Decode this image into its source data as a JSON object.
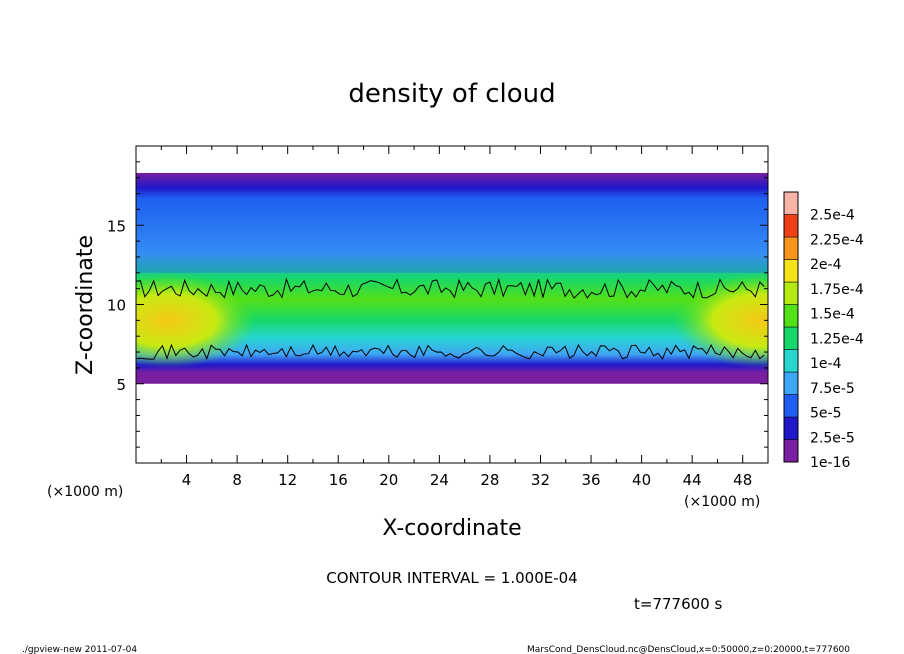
{
  "chart_data": {
    "type": "heatmap",
    "title": "density of cloud",
    "xlabel": "X-coordinate",
    "ylabel": "Z-coordinate",
    "x_unit": "(×1000 m)",
    "z_unit": "(×1000 m)",
    "xlim": [
      0,
      50
    ],
    "ylim": [
      0,
      20
    ],
    "x_ticks": [
      "4",
      "8",
      "12",
      "16",
      "20",
      "24",
      "28",
      "32",
      "36",
      "40",
      "44",
      "48"
    ],
    "y_ticks": [
      "5",
      "10",
      "15"
    ],
    "contour_interval": "CONTOUR INTERVAL = 1.000E-04",
    "time_label": "t=777600 s",
    "colorbar_labels": [
      "1e-16",
      "2.5e-5",
      "5e-5",
      "7.5e-5",
      "1e-4",
      "1.25e-4",
      "1.5e-4",
      "1.75e-4",
      "2e-4",
      "2.25e-4",
      "2.5e-4"
    ],
    "colorbar_colors": [
      "#7a1fa0",
      "#2018c8",
      "#1f5ef0",
      "#3fa6f5",
      "#28d6d0",
      "#16d86a",
      "#52e018",
      "#b4ea10",
      "#f2e418",
      "#f6961c",
      "#f04018",
      "#f8b4a8"
    ],
    "band": {
      "bottom_z": 5.0,
      "top_z": 18.3,
      "contour_low_z": 7.0,
      "contour_high_z": 11.0,
      "max_center_z": 9.0
    }
  },
  "footer": {
    "left": "./gpview-new   2011-07-04",
    "right": "MarsCond_DensCloud.nc@DensCloud,x=0:50000,z=0:20000,t=777600"
  }
}
